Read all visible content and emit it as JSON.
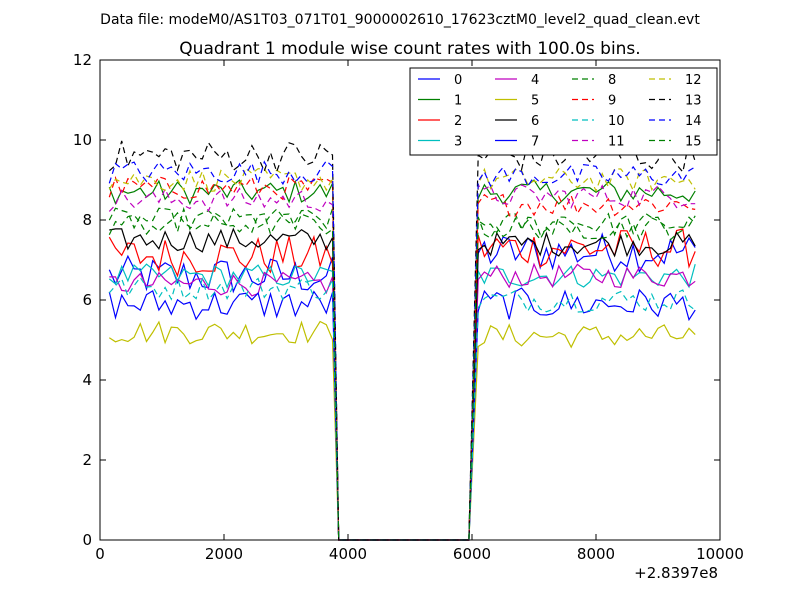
{
  "chart_data": {
    "type": "line",
    "header": "Data file: modeM0/AS1T03_071T01_9000002610_17623cztM0_level2_quad_clean.evt",
    "title": "Quadrant 1 module wise count rates with 100.0s bins.",
    "xlabel": "",
    "ylabel": "",
    "x_offset_label": "+2.8397e8",
    "xlim": [
      0,
      10000
    ],
    "ylim": [
      0,
      12
    ],
    "xticks": [
      0,
      2000,
      4000,
      6000,
      8000,
      10000
    ],
    "yticks": [
      0,
      2,
      4,
      6,
      8,
      10,
      12
    ],
    "xtick_labels": [
      "0",
      "2000",
      "4000",
      "6000",
      "8000",
      "10000"
    ],
    "ytick_labels": [
      "0",
      "2",
      "4",
      "6",
      "8",
      "10",
      "12"
    ],
    "legend_position": "top-right",
    "legend_columns": 4,
    "series": [
      {
        "name": "0",
        "color": "#0000ff",
        "dash": "solid",
        "level1": 6.6,
        "level2": 7.2,
        "amp": 0.5
      },
      {
        "name": "1",
        "color": "#008000",
        "dash": "solid",
        "level1": 8.7,
        "level2": 8.7,
        "amp": 0.3
      },
      {
        "name": "2",
        "color": "#ff0000",
        "dash": "solid",
        "level1": 7.1,
        "level2": 7.3,
        "amp": 0.5
      },
      {
        "name": "3",
        "color": "#00bfbf",
        "dash": "solid",
        "level1": 6.6,
        "level2": 6.6,
        "amp": 0.3
      },
      {
        "name": "4",
        "color": "#bf00bf",
        "dash": "solid",
        "level1": 6.4,
        "level2": 6.6,
        "amp": 0.3
      },
      {
        "name": "5",
        "color": "#bfbf00",
        "dash": "solid",
        "level1": 5.2,
        "level2": 5.1,
        "amp": 0.3
      },
      {
        "name": "6",
        "color": "#000000",
        "dash": "solid",
        "level1": 7.5,
        "level2": 7.4,
        "amp": 0.3
      },
      {
        "name": "7",
        "color": "#0000ff",
        "dash": "solid",
        "level1": 5.9,
        "level2": 5.9,
        "amp": 0.4
      },
      {
        "name": "8",
        "color": "#008000",
        "dash": "dashed",
        "level1": 8.0,
        "level2": 7.9,
        "amp": 0.3
      },
      {
        "name": "9",
        "color": "#ff0000",
        "dash": "dashed",
        "level1": 8.8,
        "level2": 8.4,
        "amp": 0.3
      },
      {
        "name": "10",
        "color": "#00bfbf",
        "dash": "dashed",
        "level1": 6.3,
        "level2": 6.0,
        "amp": 0.3
      },
      {
        "name": "11",
        "color": "#bf00bf",
        "dash": "dashed",
        "level1": 8.5,
        "level2": 8.6,
        "amp": 0.3
      },
      {
        "name": "12",
        "color": "#bfbf00",
        "dash": "dashed",
        "level1": 9.0,
        "level2": 9.0,
        "amp": 0.3
      },
      {
        "name": "13",
        "color": "#000000",
        "dash": "dashed",
        "level1": 9.6,
        "level2": 9.6,
        "amp": 0.4
      },
      {
        "name": "14",
        "color": "#0000ff",
        "dash": "dashed",
        "level1": 9.2,
        "level2": 9.1,
        "amp": 0.3
      },
      {
        "name": "15",
        "color": "#008000",
        "dash": "dashed",
        "level1": 7.9,
        "level2": 7.8,
        "amp": 0.3
      }
    ],
    "segments": [
      {
        "x_start": 150,
        "x_end": 3750
      },
      {
        "x_start": 6100,
        "x_end": 9650
      }
    ],
    "gap": {
      "x_start": 3850,
      "x_end": 5950,
      "value": 0
    },
    "bin_size": 100
  }
}
